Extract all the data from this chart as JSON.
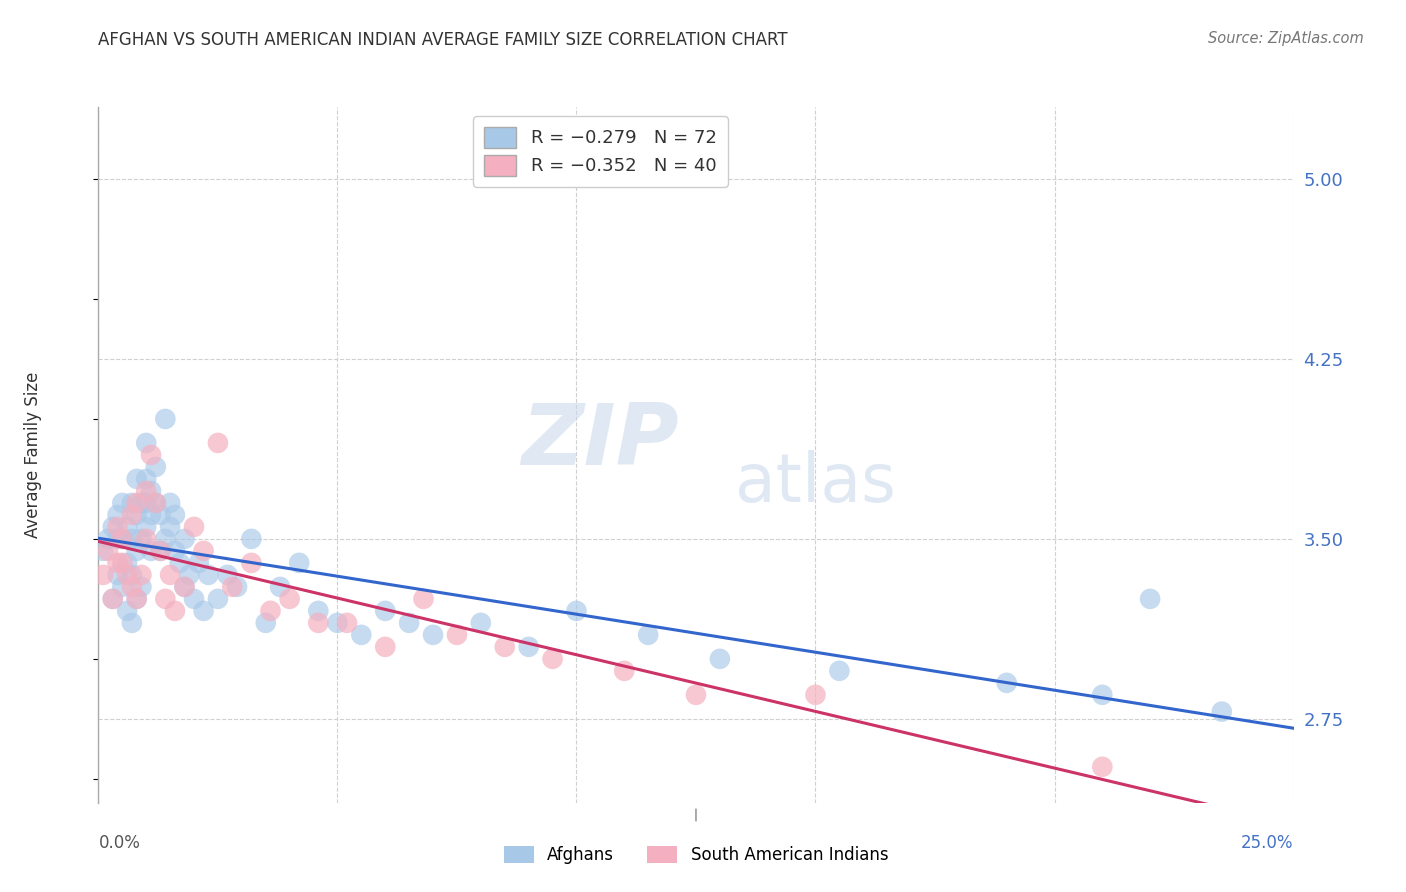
{
  "title": "AFGHAN VS SOUTH AMERICAN INDIAN AVERAGE FAMILY SIZE CORRELATION CHART",
  "source": "Source: ZipAtlas.com",
  "ylabel": "Average Family Size",
  "yticks": [
    2.75,
    3.5,
    4.25,
    5.0
  ],
  "xlim": [
    0.0,
    0.25
  ],
  "ylim": [
    2.4,
    5.3
  ],
  "background_color": "#ffffff",
  "grid_color": "#d0d0d0",
  "blue_color": "#a8c8e8",
  "pink_color": "#f4b0c0",
  "blue_line_color": "#3366cc",
  "pink_line_color": "#cc3366",
  "blue_label_color": "#3366cc",
  "right_axis_color": "#4472c4",
  "afghans_x": [
    0.001,
    0.002,
    0.003,
    0.003,
    0.004,
    0.004,
    0.004,
    0.005,
    0.005,
    0.005,
    0.006,
    0.006,
    0.006,
    0.007,
    0.007,
    0.007,
    0.007,
    0.008,
    0.008,
    0.008,
    0.008,
    0.009,
    0.009,
    0.009,
    0.01,
    0.01,
    0.01,
    0.01,
    0.011,
    0.011,
    0.011,
    0.012,
    0.012,
    0.013,
    0.013,
    0.014,
    0.014,
    0.015,
    0.015,
    0.016,
    0.016,
    0.017,
    0.018,
    0.018,
    0.019,
    0.02,
    0.021,
    0.022,
    0.023,
    0.025,
    0.027,
    0.029,
    0.032,
    0.035,
    0.038,
    0.042,
    0.046,
    0.05,
    0.055,
    0.06,
    0.065,
    0.07,
    0.08,
    0.09,
    0.1,
    0.115,
    0.13,
    0.155,
    0.19,
    0.21,
    0.22,
    0.235
  ],
  "afghans_y": [
    3.45,
    3.5,
    3.55,
    3.25,
    3.35,
    3.5,
    3.6,
    3.3,
    3.5,
    3.65,
    3.2,
    3.4,
    3.55,
    3.15,
    3.35,
    3.5,
    3.65,
    3.25,
    3.45,
    3.6,
    3.75,
    3.3,
    3.5,
    3.65,
    3.55,
    3.65,
    3.75,
    3.9,
    3.45,
    3.6,
    3.7,
    3.65,
    3.8,
    3.45,
    3.6,
    3.5,
    4.0,
    3.55,
    3.65,
    3.45,
    3.6,
    3.4,
    3.3,
    3.5,
    3.35,
    3.25,
    3.4,
    3.2,
    3.35,
    3.25,
    3.35,
    3.3,
    3.5,
    3.15,
    3.3,
    3.4,
    3.2,
    3.15,
    3.1,
    3.2,
    3.15,
    3.1,
    3.15,
    3.05,
    3.2,
    3.1,
    3.0,
    2.95,
    2.9,
    2.85,
    3.25,
    2.78
  ],
  "sa_indians_x": [
    0.001,
    0.002,
    0.003,
    0.004,
    0.004,
    0.005,
    0.005,
    0.006,
    0.007,
    0.007,
    0.008,
    0.008,
    0.009,
    0.01,
    0.01,
    0.011,
    0.012,
    0.013,
    0.014,
    0.015,
    0.016,
    0.018,
    0.02,
    0.022,
    0.025,
    0.028,
    0.032,
    0.036,
    0.04,
    0.046,
    0.052,
    0.06,
    0.068,
    0.075,
    0.085,
    0.095,
    0.11,
    0.125,
    0.15,
    0.21
  ],
  "sa_indians_y": [
    3.35,
    3.45,
    3.25,
    3.55,
    3.4,
    3.5,
    3.4,
    3.35,
    3.6,
    3.3,
    3.25,
    3.65,
    3.35,
    3.5,
    3.7,
    3.85,
    3.65,
    3.45,
    3.25,
    3.35,
    3.2,
    3.3,
    3.55,
    3.45,
    3.9,
    3.3,
    3.4,
    3.2,
    3.25,
    3.15,
    3.15,
    3.05,
    3.25,
    3.1,
    3.05,
    3.0,
    2.95,
    2.85,
    2.85,
    2.55
  ]
}
